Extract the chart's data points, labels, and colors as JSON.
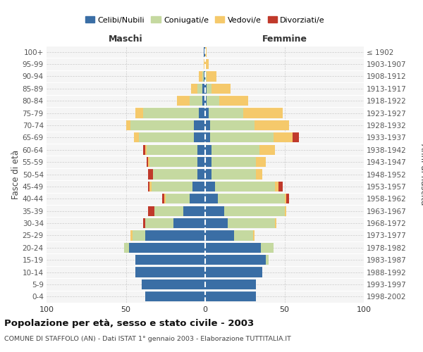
{
  "age_groups": [
    "0-4",
    "5-9",
    "10-14",
    "15-19",
    "20-24",
    "25-29",
    "30-34",
    "35-39",
    "40-44",
    "45-49",
    "50-54",
    "55-59",
    "60-64",
    "65-69",
    "70-74",
    "75-79",
    "80-84",
    "85-89",
    "90-94",
    "95-99",
    "100+"
  ],
  "birth_years": [
    "1998-2002",
    "1993-1997",
    "1988-1992",
    "1983-1987",
    "1978-1982",
    "1973-1977",
    "1968-1972",
    "1963-1967",
    "1958-1962",
    "1953-1957",
    "1948-1952",
    "1943-1947",
    "1938-1942",
    "1933-1937",
    "1928-1932",
    "1923-1927",
    "1918-1922",
    "1913-1917",
    "1908-1912",
    "1903-1907",
    "≤ 1902"
  ],
  "maschi_celibi": [
    38,
    40,
    44,
    44,
    48,
    38,
    20,
    14,
    10,
    8,
    5,
    5,
    5,
    7,
    7,
    4,
    2,
    2,
    1,
    0,
    1
  ],
  "maschi_coniugati": [
    0,
    0,
    0,
    0,
    3,
    8,
    18,
    18,
    15,
    26,
    28,
    30,
    32,
    35,
    40,
    35,
    8,
    3,
    1,
    0,
    0
  ],
  "maschi_vedovi": [
    0,
    0,
    0,
    0,
    0,
    1,
    0,
    0,
    1,
    1,
    0,
    1,
    1,
    3,
    3,
    5,
    8,
    4,
    2,
    1,
    0
  ],
  "maschi_divorziati": [
    0,
    0,
    0,
    0,
    0,
    0,
    1,
    4,
    1,
    1,
    3,
    1,
    1,
    0,
    0,
    0,
    0,
    0,
    0,
    0,
    0
  ],
  "femmine_nubili": [
    32,
    32,
    36,
    38,
    35,
    18,
    14,
    12,
    8,
    6,
    4,
    4,
    4,
    3,
    3,
    2,
    1,
    1,
    0,
    0,
    0
  ],
  "femmine_coniugate": [
    0,
    0,
    0,
    2,
    8,
    12,
    30,
    38,
    42,
    38,
    28,
    28,
    30,
    40,
    28,
    22,
    8,
    3,
    1,
    0,
    0
  ],
  "femmine_vedove": [
    0,
    0,
    0,
    0,
    0,
    1,
    1,
    1,
    1,
    2,
    4,
    6,
    10,
    12,
    22,
    25,
    18,
    12,
    6,
    2,
    1
  ],
  "femmine_divorziate": [
    0,
    0,
    0,
    0,
    0,
    0,
    0,
    0,
    2,
    3,
    0,
    0,
    0,
    4,
    0,
    0,
    0,
    0,
    0,
    0,
    0
  ],
  "color_celibi": "#3a6ea5",
  "color_coniugati": "#c5d9a0",
  "color_vedovi": "#f5c96b",
  "color_divorziati": "#c0392b",
  "xlim": 100,
  "title": "Popolazione per età, sesso e stato civile - 2003",
  "subtitle": "COMUNE DI STAFFOLO (AN) - Dati ISTAT 1° gennaio 2003 - Elaborazione TUTTITALIA.IT",
  "ylabel_left": "Fasce di età",
  "ylabel_right": "Anni di nascita",
  "label_maschi": "Maschi",
  "label_femmine": "Femmine",
  "legend_labels": [
    "Celibi/Nubili",
    "Coniugati/e",
    "Vedovi/e",
    "Divorziati/e"
  ],
  "bg_color": "#f5f5f5"
}
